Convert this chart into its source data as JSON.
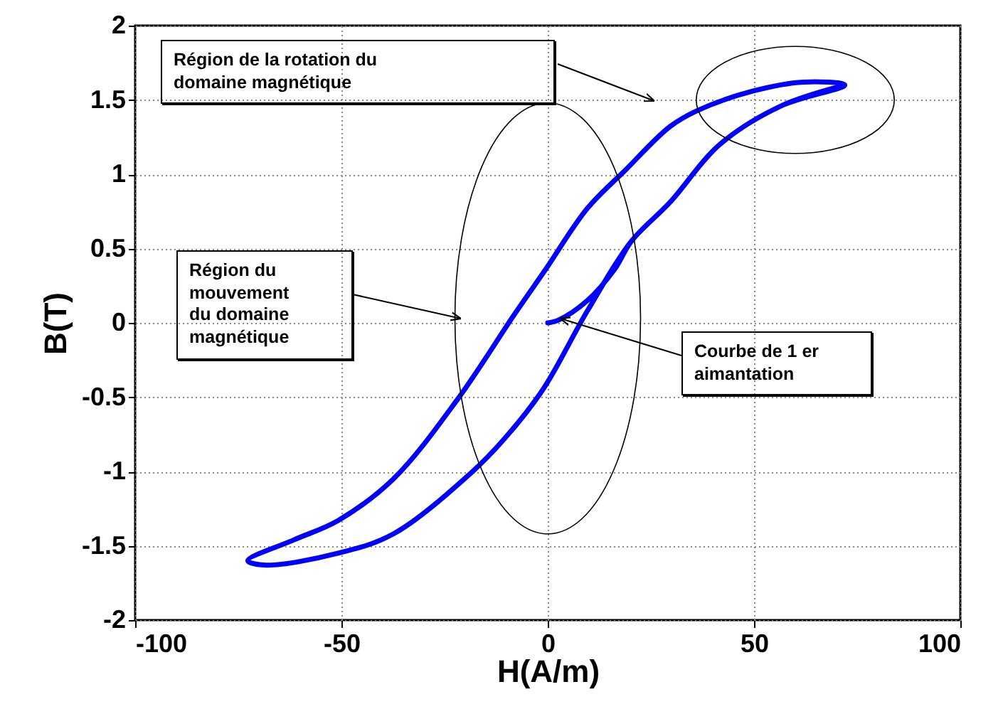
{
  "chart_data": {
    "type": "line",
    "xlabel": "H(A/m)",
    "ylabel": "B(T)",
    "xlim": [
      -100,
      100
    ],
    "xticks": [
      -100,
      -50,
      0,
      50,
      100
    ],
    "ylim": [
      -2,
      2
    ],
    "yticks": [
      -2,
      -1.5,
      -1,
      -0.5,
      0,
      0.5,
      1,
      1.5,
      2
    ],
    "grid": true,
    "series": [
      {
        "color": "#0000ff",
        "x": [
          0,
          2.7,
          9.6,
          16.2,
          20.3,
          29.6,
          41.7,
          56.6,
          72,
          61.9,
          49.8,
          36.4,
          29.6,
          18.9,
          9.6,
          -0.5,
          -8,
          -22,
          -37.4,
          -50.8,
          -61.5,
          -72.7,
          -68.3,
          -50.8,
          -37.4,
          -18.6,
          -10.5,
          -1.2,
          9.6,
          20.3,
          29.6,
          41.7,
          56.6,
          72
        ],
        "values": [
          0,
          0.02,
          0.15,
          0.36,
          0.55,
          0.81,
          1.2,
          1.46,
          1.6,
          1.62,
          1.56,
          1.43,
          1.32,
          1.03,
          0.77,
          0.36,
          0.06,
          -0.52,
          -1.05,
          -1.33,
          -1.46,
          -1.6,
          -1.63,
          -1.55,
          -1.42,
          -1.01,
          -0.78,
          -0.45,
          0.08,
          0.55,
          0.81,
          1.2,
          1.46,
          1.6
        ]
      }
    ],
    "annotations": [
      "Région de la rotation du\ndomaine magnétique",
      "Région du\nmouvement\ndu domaine\nmagnétique",
      {
        "text": "Courbe de 1 er\naimantation",
        "x": 3,
        "y": 0.03
      }
    ]
  }
}
